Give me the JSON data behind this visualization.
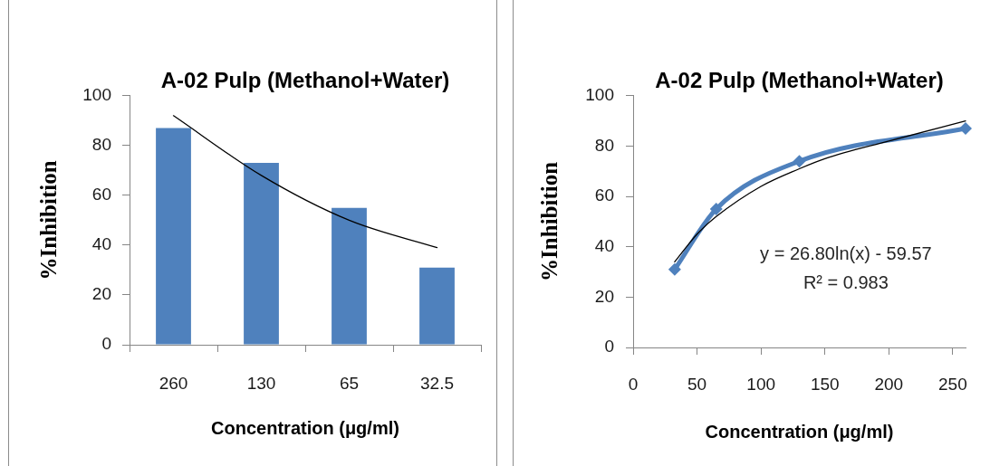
{
  "chart_data": [
    {
      "type": "bar",
      "title": "A-02 Pulp (Methanol+Water)",
      "xlabel": "Concentration (μg/ml)",
      "ylabel": "%Inhibition",
      "categories": [
        "260",
        "130",
        "65",
        "32.5"
      ],
      "series": [
        {
          "color": "#4f81bd",
          "values": [
            87,
            73,
            55,
            31
          ]
        },
        {
          "type": "line",
          "color": "#000000",
          "values": [
            92,
            68,
            50,
            39
          ]
        }
      ],
      "ylim": [
        0,
        100
      ],
      "yticks": [
        0,
        20,
        40,
        60,
        80,
        100
      ]
    },
    {
      "type": "line",
      "title": "A-02 Pulp (Methanol+Water)",
      "xlabel": "Concentration (μg/ml)",
      "ylabel": "%Inhibition",
      "x": [
        32.5,
        65,
        130,
        260
      ],
      "series": [
        {
          "color": "#4f81bd",
          "marker": "diamond",
          "values": [
            31,
            55,
            74,
            87
          ]
        },
        {
          "type": "line",
          "color": "#000000",
          "x": [
            32.5,
            50,
            65,
            100,
            130,
            150,
            200,
            260
          ],
          "values": [
            34,
            45,
            52,
            64,
            71,
            75,
            82,
            90
          ]
        }
      ],
      "xlim": [
        0,
        260
      ],
      "xticks": [
        0,
        50,
        100,
        150,
        200,
        250
      ],
      "ylim": [
        0,
        100
      ],
      "yticks": [
        0,
        20,
        40,
        60,
        80,
        100
      ],
      "annotations": [
        "y = 26.80ln(x) - 59.57",
        "R² = 0.983"
      ]
    }
  ]
}
